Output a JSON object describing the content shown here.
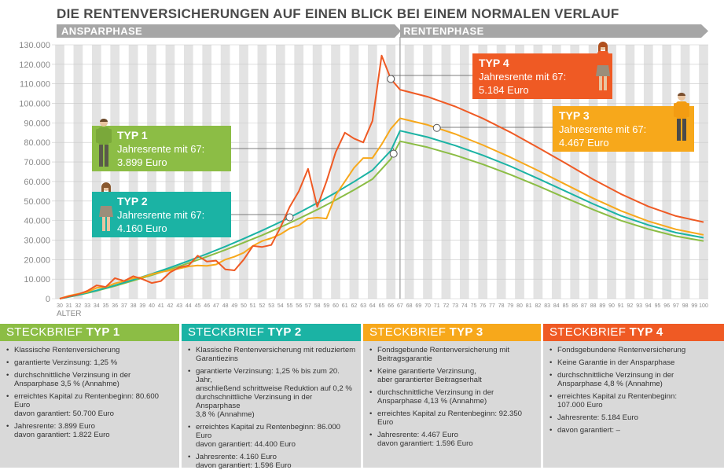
{
  "title": "DIE RENTENVERSICHERUNGEN AUF EINEN BLICK BEI EINEM NORMALEN VERLAUF",
  "phases": {
    "left": "ANSPARPHASE",
    "right": "RENTENPHASE"
  },
  "axis_label": "ALTER",
  "colors": {
    "typ1": "#8cbd45",
    "typ2": "#1bb3a4",
    "typ3": "#f7a81b",
    "typ4": "#ef5a24",
    "stripe": "#e3e3e3",
    "gray_bar": "#a6a6a6",
    "card_bg": "#d9d9d9"
  },
  "callouts": [
    {
      "title": "TYP 1",
      "line1": "Jahresrente mit 67:",
      "line2": "3.899 Euro"
    },
    {
      "title": "TYP 2",
      "line1": "Jahresrente mit 67:",
      "line2": "4.160 Euro"
    },
    {
      "title": "TYP 3",
      "line1": "Jahresrente mit 67:",
      "line2": "4.467 Euro"
    },
    {
      "title": "TYP 4",
      "line1": "Jahresrente mit 67:",
      "line2": "5.184 Euro"
    }
  ],
  "cards": [
    {
      "head_prefix": "STECKBRIEF ",
      "head_bold": "TYP 1",
      "items": [
        "Klassische Rentenversicherung",
        "garantierte Verzinsung: 1,25 %",
        "durchschnittliche Verzinsung in der\nAnsparphase 3,5 % (Annahme)",
        "erreichtes Kapital zu Rentenbeginn: 80.600 Euro\ndavon garantiert: 50.700 Euro",
        "Jahresrente: 3.899 Euro\ndavon garantiert: 1.822 Euro"
      ]
    },
    {
      "head_prefix": "STECKBRIEF ",
      "head_bold": "TYP 2",
      "items": [
        "Klassische Rentenversicherung mit reduziertem\nGarantiezins",
        "garantierte Verzinsung: 1,25 % bis zum 20. Jahr,\nanschließend schrittweise Reduktion auf 0,2 %\ndurchschnittliche Verzinsung in der Ansparphase\n3,8 % (Annahme)",
        "erreichtes Kapital zu Rentenbeginn: 86.000 Euro\ndavon garantiert: 44.400 Euro",
        "Jahresrente: 4.160 Euro\ndavon garantiert: 1.596 Euro"
      ]
    },
    {
      "head_prefix": "STECKBRIEF ",
      "head_bold": "TYP 3",
      "items": [
        "Fondsgebunde Rentenversicherung mit\nBeitragsgarantie",
        "Keine garantierte Verzinsung,\naber garantierter Beitragserhalt",
        "durchschnittliche Verzinsung in der\nAnsparphase 4,13 % (Annahme)",
        "erreichtes Kapital zu Rentenbeginn: 92.350 Euro",
        "Jahresrente: 4.467 Euro\ndavon garantiert: 1.596 Euro"
      ]
    },
    {
      "head_prefix": "STECKBRIEF ",
      "head_bold": "TYP 4",
      "items": [
        "Fondsgebundene Rentenversicherung",
        "Keine Garantie in der Ansparphase",
        "durchschnittliche Verzinsung in der\nAnsparphase 4,8 % (Annahme)",
        "erreichtes Kapital zu Rentenbeginn:\n107.000 Euro",
        "Jahresrente: 5.184 Euro",
        "davon garantiert: –"
      ]
    }
  ],
  "chart_data": {
    "type": "line",
    "x_start": 30,
    "x_end": 100,
    "xlabel": "ALTER",
    "ylim": [
      0,
      130000
    ],
    "yticks": [
      0,
      10000,
      20000,
      30000,
      40000,
      50000,
      60000,
      70000,
      80000,
      90000,
      100000,
      110000,
      120000,
      130000
    ],
    "ytick_labels": [
      "0",
      "10.000",
      "20.000",
      "30.000",
      "40.000",
      "50.000",
      "60.000",
      "70.000",
      "80.000",
      "90.000",
      "100.000",
      "110.000",
      "120.000",
      "130.000"
    ],
    "xtick_labels": [
      "30",
      "31",
      "32",
      "33",
      "34",
      "35",
      "36",
      "37",
      "38",
      "39",
      "40",
      "41",
      "42",
      "43",
      "44",
      "45",
      "46",
      "47",
      "48",
      "49",
      "50",
      "51",
      "52",
      "53",
      "54",
      "55",
      "56",
      "57",
      "58",
      "59",
      "60",
      "61",
      "62",
      "63",
      "64",
      "65",
      "66",
      "67",
      "68",
      "69",
      "70",
      "71",
      "72",
      "73",
      "74",
      "75",
      "76",
      "77",
      "78",
      "79",
      "80",
      "81",
      "82",
      "83",
      "84",
      "85",
      "86",
      "87",
      "88",
      "89",
      "90",
      "91",
      "92",
      "93",
      "94",
      "95",
      "96",
      "97",
      "98",
      "99",
      "100"
    ],
    "phase_divider_x": 67,
    "series": [
      {
        "name": "TYP 1",
        "color": "#8cbd45",
        "points": [
          [
            30,
            0
          ],
          [
            32,
            1800
          ],
          [
            34,
            4000
          ],
          [
            36,
            6500
          ],
          [
            38,
            9200
          ],
          [
            40,
            12000
          ],
          [
            42,
            15000
          ],
          [
            44,
            18200
          ],
          [
            46,
            21500
          ],
          [
            48,
            25000
          ],
          [
            50,
            28700
          ],
          [
            52,
            32500
          ],
          [
            54,
            36600
          ],
          [
            56,
            41000
          ],
          [
            58,
            45600
          ],
          [
            60,
            50500
          ],
          [
            62,
            55700
          ],
          [
            64,
            61200
          ],
          [
            66,
            71500
          ],
          [
            67,
            80600
          ],
          [
            70,
            77500
          ],
          [
            73,
            73500
          ],
          [
            76,
            68800
          ],
          [
            79,
            63500
          ],
          [
            82,
            57700
          ],
          [
            85,
            51600
          ],
          [
            88,
            45600
          ],
          [
            91,
            40000
          ],
          [
            94,
            35600
          ],
          [
            97,
            32000
          ],
          [
            100,
            29500
          ]
        ]
      },
      {
        "name": "TYP 2",
        "color": "#1bb3a4",
        "points": [
          [
            30,
            0
          ],
          [
            32,
            1900
          ],
          [
            34,
            4200
          ],
          [
            36,
            6800
          ],
          [
            38,
            9700
          ],
          [
            40,
            12700
          ],
          [
            42,
            15900
          ],
          [
            44,
            19300
          ],
          [
            46,
            22900
          ],
          [
            48,
            26700
          ],
          [
            50,
            30700
          ],
          [
            52,
            34900
          ],
          [
            54,
            39300
          ],
          [
            56,
            44000
          ],
          [
            58,
            49000
          ],
          [
            60,
            54300
          ],
          [
            62,
            59900
          ],
          [
            64,
            65800
          ],
          [
            66,
            75800
          ],
          [
            67,
            86000
          ],
          [
            70,
            82700
          ],
          [
            73,
            78400
          ],
          [
            76,
            73400
          ],
          [
            79,
            67800
          ],
          [
            82,
            61500
          ],
          [
            85,
            55000
          ],
          [
            88,
            48500
          ],
          [
            91,
            42500
          ],
          [
            94,
            37700
          ],
          [
            97,
            33800
          ],
          [
            100,
            31200
          ]
        ]
      },
      {
        "name": "TYP 3",
        "color": "#f7a81b",
        "points": [
          [
            30,
            0
          ],
          [
            31,
            1500
          ],
          [
            32,
            2500
          ],
          [
            33,
            3400
          ],
          [
            34,
            5500
          ],
          [
            35,
            6000
          ],
          [
            36,
            7800
          ],
          [
            37,
            9000
          ],
          [
            38,
            10500
          ],
          [
            39,
            11000
          ],
          [
            40,
            12500
          ],
          [
            41,
            13600
          ],
          [
            42,
            14500
          ],
          [
            43,
            15400
          ],
          [
            44,
            16500
          ],
          [
            45,
            17000
          ],
          [
            46,
            16800
          ],
          [
            47,
            17500
          ],
          [
            48,
            20000
          ],
          [
            49,
            21500
          ],
          [
            50,
            23500
          ],
          [
            51,
            27000
          ],
          [
            52,
            29500
          ],
          [
            53,
            31000
          ],
          [
            54,
            33000
          ],
          [
            55,
            36000
          ],
          [
            56,
            37500
          ],
          [
            57,
            41000
          ],
          [
            58,
            41500
          ],
          [
            59,
            41000
          ],
          [
            60,
            53000
          ],
          [
            61,
            60000
          ],
          [
            62,
            67000
          ],
          [
            63,
            72000
          ],
          [
            64,
            72000
          ],
          [
            65,
            79000
          ],
          [
            66,
            87000
          ],
          [
            67,
            92350
          ],
          [
            70,
            89000
          ],
          [
            73,
            84300
          ],
          [
            76,
            78700
          ],
          [
            79,
            72400
          ],
          [
            82,
            65600
          ],
          [
            85,
            58500
          ],
          [
            88,
            51400
          ],
          [
            91,
            45000
          ],
          [
            94,
            39700
          ],
          [
            97,
            35500
          ],
          [
            100,
            32700
          ]
        ]
      },
      {
        "name": "TYP 4",
        "color": "#ef5a24",
        "points": [
          [
            30,
            0
          ],
          [
            31,
            1200
          ],
          [
            32,
            2200
          ],
          [
            33,
            4000
          ],
          [
            34,
            6800
          ],
          [
            35,
            6000
          ],
          [
            36,
            10500
          ],
          [
            37,
            9000
          ],
          [
            38,
            11500
          ],
          [
            39,
            10000
          ],
          [
            40,
            8000
          ],
          [
            41,
            9000
          ],
          [
            42,
            13500
          ],
          [
            43,
            16000
          ],
          [
            44,
            17000
          ],
          [
            45,
            22000
          ],
          [
            46,
            19000
          ],
          [
            47,
            19500
          ],
          [
            48,
            15000
          ],
          [
            49,
            14500
          ],
          [
            50,
            20000
          ],
          [
            51,
            27000
          ],
          [
            52,
            26500
          ],
          [
            53,
            27500
          ],
          [
            54,
            36500
          ],
          [
            55,
            47000
          ],
          [
            56,
            55000
          ],
          [
            57,
            66500
          ],
          [
            58,
            47000
          ],
          [
            59,
            60000
          ],
          [
            60,
            75000
          ],
          [
            61,
            85000
          ],
          [
            62,
            82000
          ],
          [
            63,
            80000
          ],
          [
            64,
            91000
          ],
          [
            65,
            124500
          ],
          [
            66,
            112500
          ],
          [
            67,
            107000
          ],
          [
            70,
            103400
          ],
          [
            73,
            98400
          ],
          [
            76,
            92300
          ],
          [
            79,
            85200
          ],
          [
            82,
            77400
          ],
          [
            85,
            69300
          ],
          [
            88,
            61100
          ],
          [
            91,
            53600
          ],
          [
            94,
            47200
          ],
          [
            97,
            42300
          ],
          [
            100,
            39200
          ]
        ]
      }
    ]
  }
}
